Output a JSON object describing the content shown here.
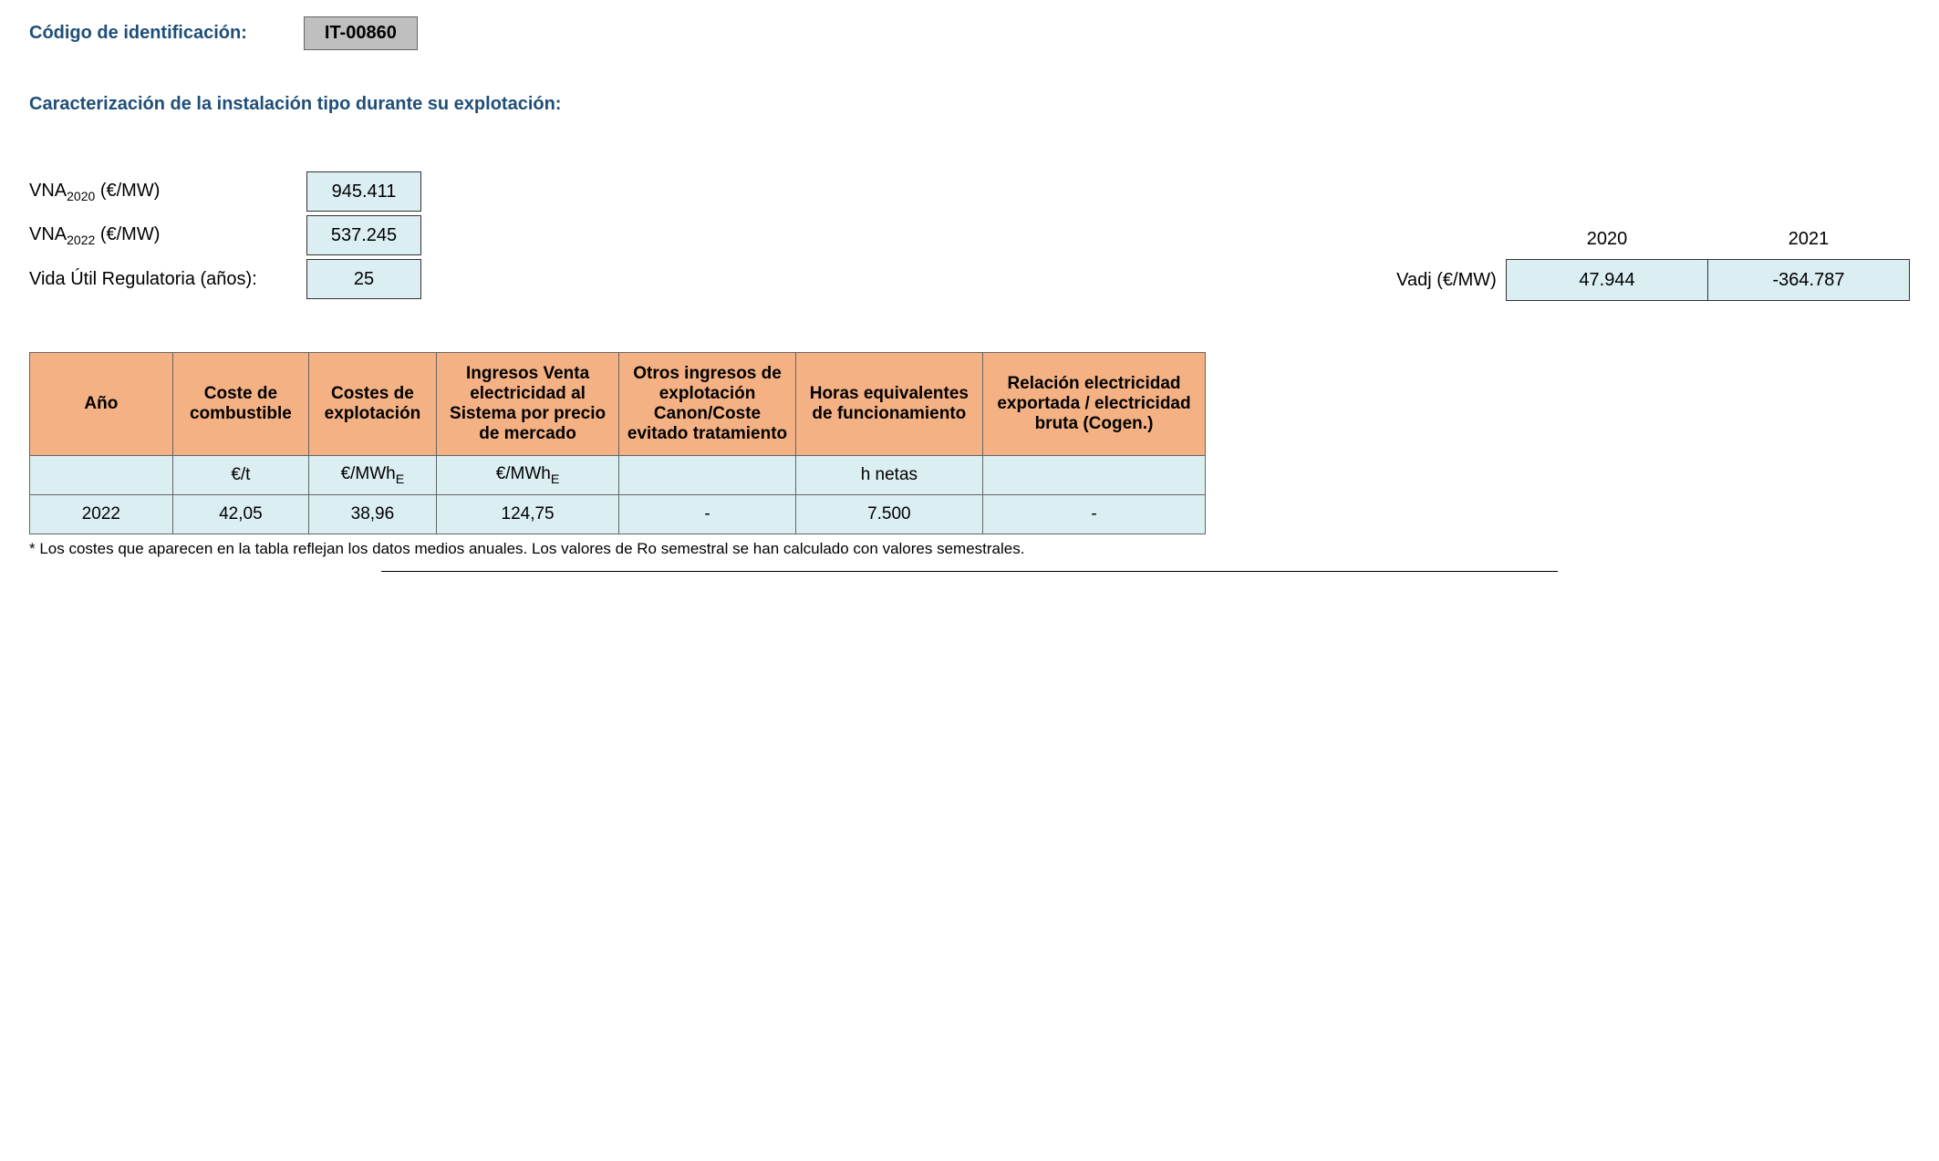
{
  "header": {
    "code_label": "Código de identificación:",
    "code_value": "IT-00860"
  },
  "section_title": "Caracterización de la instalación tipo durante su explotación:",
  "params": {
    "vna2020_label_pre": "VNA",
    "vna2020_sub": "2020",
    "vna_unit": " (€/MW)",
    "vna2020_value": "945.411",
    "vna2022_label_pre": "VNA",
    "vna2022_sub": "2022",
    "vna2022_value": "537.245",
    "life_label": "Vida Útil Regulatoria (años):",
    "life_value": "25"
  },
  "vadj": {
    "year1": "2020",
    "year2": "2021",
    "label": "Vadj (€/MW)",
    "val1": "47.944",
    "val2": "-364.787"
  },
  "table": {
    "headers": {
      "year": "Año",
      "fuel": "Coste de combustible",
      "opex": "Costes de explotación",
      "income_sale": "Ingresos Venta electricidad al Sistema por precio de mercado",
      "other_income": "Otros ingresos de explotación Canon/Coste evitado tratamiento",
      "hours": "Horas equivalentes de funcionamiento",
      "ratio": "Relación electricidad exportada / electricidad bruta (Cogen.)"
    },
    "units": {
      "year": "",
      "fuel": "€/t",
      "opex_pre": "€/MWh",
      "opex_sub": "E",
      "income_pre": "€/MWh",
      "income_sub": "E",
      "other": "",
      "hours": "h netas",
      "ratio": ""
    },
    "row": {
      "year": "2022",
      "fuel": "42,05",
      "opex": "38,96",
      "income": "124,75",
      "other": "-",
      "hours": "7.500",
      "ratio": "-"
    }
  },
  "footnote": "* Los costes que aparecen en la tabla reflejan los datos medios anuales. Los valores de Ro semestral se han calculado con valores semestrales.",
  "colors": {
    "heading": "#1f4e79",
    "header_bg": "#f4b183",
    "cell_bg": "#dbeef2",
    "code_bg": "#bfbfbf"
  }
}
